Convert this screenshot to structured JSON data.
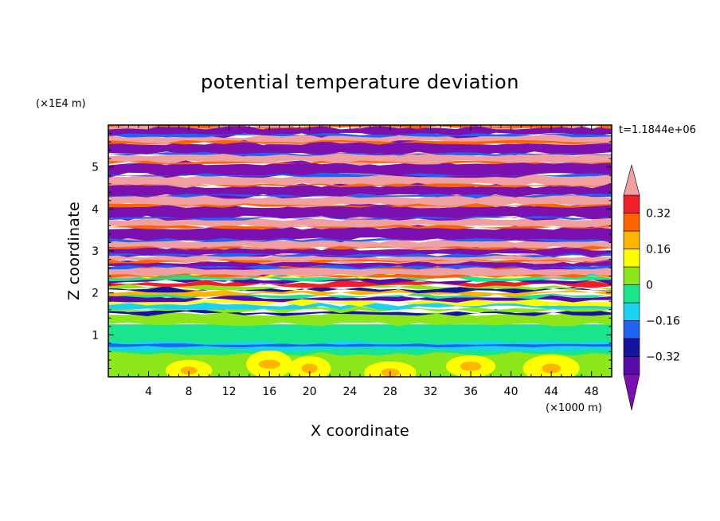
{
  "chart_data": {
    "type": "heatmap",
    "title": "potential temperature deviation",
    "xlabel": "X coordinate",
    "ylabel": "Z coordinate",
    "x_unit": "(×1000 m)",
    "y_unit": "(×1E4 m)",
    "time_label": "t=1.1844e+06",
    "xlim": [
      0,
      50
    ],
    "ylim": [
      0,
      6
    ],
    "x_ticks": [
      4,
      8,
      12,
      16,
      20,
      24,
      28,
      32,
      36,
      40,
      44,
      48
    ],
    "y_ticks": [
      1,
      2,
      3,
      4,
      5
    ],
    "grid": false,
    "colorbar": {
      "levels": [
        -0.4,
        -0.32,
        -0.24,
        -0.16,
        -0.08,
        0,
        0.08,
        0.16,
        0.24,
        0.32,
        0.4
      ],
      "tick_labels": [
        "0.32",
        "0.16",
        "0",
        "−0.16",
        "−0.32"
      ],
      "tick_values": [
        0.32,
        0.16,
        0,
        -0.16,
        -0.32
      ],
      "colors": [
        "#7b0fb0",
        "#5a0aa8",
        "#14149e",
        "#1e64f0",
        "#19d2f0",
        "#19e68c",
        "#8ce619",
        "#ffff00",
        "#ffb400",
        "#ff6400",
        "#f01e28",
        "#f0a0a0"
      ],
      "extend": "both",
      "placement": "right"
    },
    "layers": [
      {
        "z": [
          0.0,
          0.65
        ],
        "level": "0 to 0.08",
        "value": 0.04
      },
      {
        "z": [
          0.65,
          0.8
        ],
        "level": "-0.08 to 0",
        "value": -0.04
      },
      {
        "z": [
          0.8,
          1.25
        ],
        "level": "-0.08 to 0",
        "value": -0.04
      },
      {
        "z": [
          1.25,
          1.5
        ],
        "level": "0.08 to 0.16",
        "value": 0.1
      },
      {
        "z": [
          1.5,
          2.4
        ],
        "level": "mixed -0.32 to 0.4",
        "value": 0.0
      },
      {
        "z": [
          2.4,
          6.0
        ],
        "level": "alternating > 0.4 / < -0.4",
        "value": 0.0
      }
    ]
  }
}
